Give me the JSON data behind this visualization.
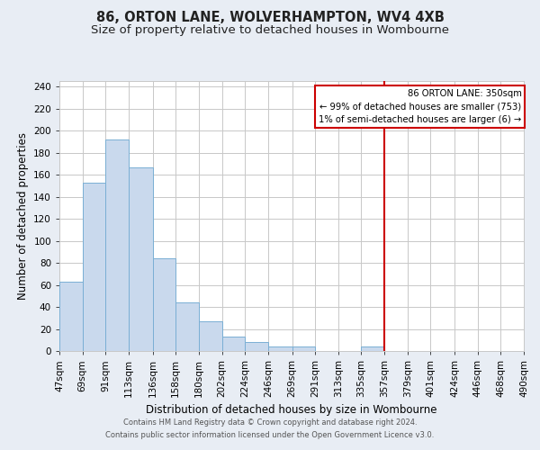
{
  "title": "86, ORTON LANE, WOLVERHAMPTON, WV4 4XB",
  "subtitle": "Size of property relative to detached houses in Wombourne",
  "xlabel": "Distribution of detached houses by size in Wombourne",
  "ylabel": "Number of detached properties",
  "footnote1": "Contains HM Land Registry data © Crown copyright and database right 2024.",
  "footnote2": "Contains public sector information licensed under the Open Government Licence v3.0.",
  "bin_edges": [
    47,
    69,
    91,
    113,
    136,
    158,
    180,
    202,
    224,
    246,
    269,
    291,
    313,
    335,
    357,
    379,
    401,
    424,
    446,
    468,
    490
  ],
  "bin_labels": [
    "47sqm",
    "69sqm",
    "91sqm",
    "113sqm",
    "136sqm",
    "158sqm",
    "180sqm",
    "202sqm",
    "224sqm",
    "246sqm",
    "269sqm",
    "291sqm",
    "313sqm",
    "335sqm",
    "357sqm",
    "379sqm",
    "401sqm",
    "424sqm",
    "446sqm",
    "468sqm",
    "490sqm"
  ],
  "counts": [
    63,
    153,
    192,
    167,
    84,
    44,
    27,
    13,
    8,
    4,
    4,
    0,
    0,
    4,
    0,
    0,
    0,
    0,
    0,
    0
  ],
  "bar_color": "#c9d9ed",
  "bar_edge_color": "#7aafd4",
  "vline_x": 357,
  "vline_color": "#cc0000",
  "annotation_title": "86 ORTON LANE: 350sqm",
  "annotation_line1": "← 99% of detached houses are smaller (753)",
  "annotation_line2": "1% of semi-detached houses are larger (6) →",
  "annotation_box_color": "#cc0000",
  "ylim": [
    0,
    245
  ],
  "yticks": [
    0,
    20,
    40,
    60,
    80,
    100,
    120,
    140,
    160,
    180,
    200,
    220,
    240
  ],
  "grid_color": "#c8c8c8",
  "background_color": "#e8edf4",
  "axes_background": "#ffffff",
  "title_fontsize": 10.5,
  "subtitle_fontsize": 9.5,
  "label_fontsize": 8.5,
  "tick_fontsize": 7.5,
  "footnote_fontsize": 6.0
}
